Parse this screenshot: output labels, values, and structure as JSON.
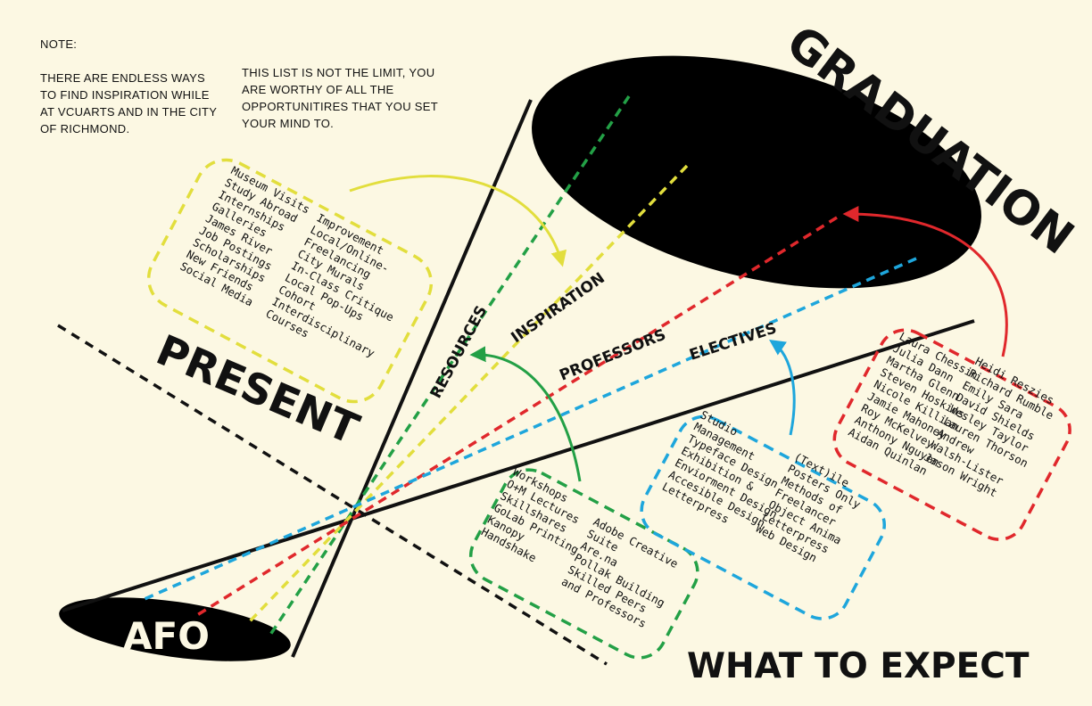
{
  "note": {
    "heading": "NOTE:",
    "line1": "THERE ARE ENDLESS WAYS TO FIND INSPIRATION WHILE AT VCUARTS AND IN THE CITY OF RICHMOND.",
    "line2": "THIS LIST IS NOT THE LIMIT, YOU ARE WORTHY OF ALL THE OPPORTUNITIRES THAT YOU SET YOUR MIND TO."
  },
  "labels": {
    "graduation": "GRADUATION",
    "present": "PRESENT",
    "afo": "AFO",
    "expect": "WHAT TO EXPECT",
    "resources": "RESOURCES",
    "inspiration": "INSPIRATION",
    "professors": "PROFESSORS",
    "electives": "ELECTIVES"
  },
  "colors": {
    "background": "#fcf8e3",
    "ink": "#111111",
    "inspiration": "#e2de3d",
    "resources": "#23a046",
    "professors": "#e0282c",
    "electives": "#1ea6dc"
  },
  "inspiration_box": {
    "col1": [
      "Museum Visits",
      "Study Abroad",
      "Internships",
      "Galleries",
      "James River",
      "Job Postings",
      "Scholarships",
      "New Friends",
      "Social Media"
    ],
    "col2": [
      "Improvement",
      "Local/Online-",
      "Freelancing",
      "City Murals",
      "In-Class Critique",
      "Local Pop-Ups",
      "Cohort",
      "Interdisciplinary",
      "Courses"
    ]
  },
  "resources_box": {
    "col1": [
      "Workshops",
      "O+M Lectures",
      "Skillshares",
      "GoLab Printing",
      "Kanopy",
      "Handshake"
    ],
    "col2": [
      "Adobe Creative",
      "Suite",
      "Are.na",
      "Pollak Building",
      "Skilled Peers",
      "and Professors"
    ]
  },
  "electives_box": {
    "col1": [
      "Studio",
      "Management",
      "Typeface Design",
      "Exhibition &",
      "Enviorment Design",
      "Accesible Design",
      "Letterpress"
    ],
    "col2": [
      "(Text)ile",
      "Posters Only",
      "Methods of",
      "Freelancer",
      "Object Anima",
      "Letterpress",
      "Web Design"
    ]
  },
  "professors_box": {
    "col1": [
      "Laura Chessin",
      "Julia Dann",
      "Martha Glenn",
      "Steven Hoskins",
      "Nicole Killian",
      "Jamie Mahoney",
      "Roy McKelvey",
      "Anthony Nguyen",
      "Aidan Quinlan"
    ],
    "col2": [
      "Heidi Reszies",
      "Richard Rumble",
      "Emily Sara",
      "David Shields",
      "Wesley Taylor",
      "Lauren Thorson",
      "Andrew",
      "Walsh-Lister",
      "Jason Wright"
    ]
  }
}
